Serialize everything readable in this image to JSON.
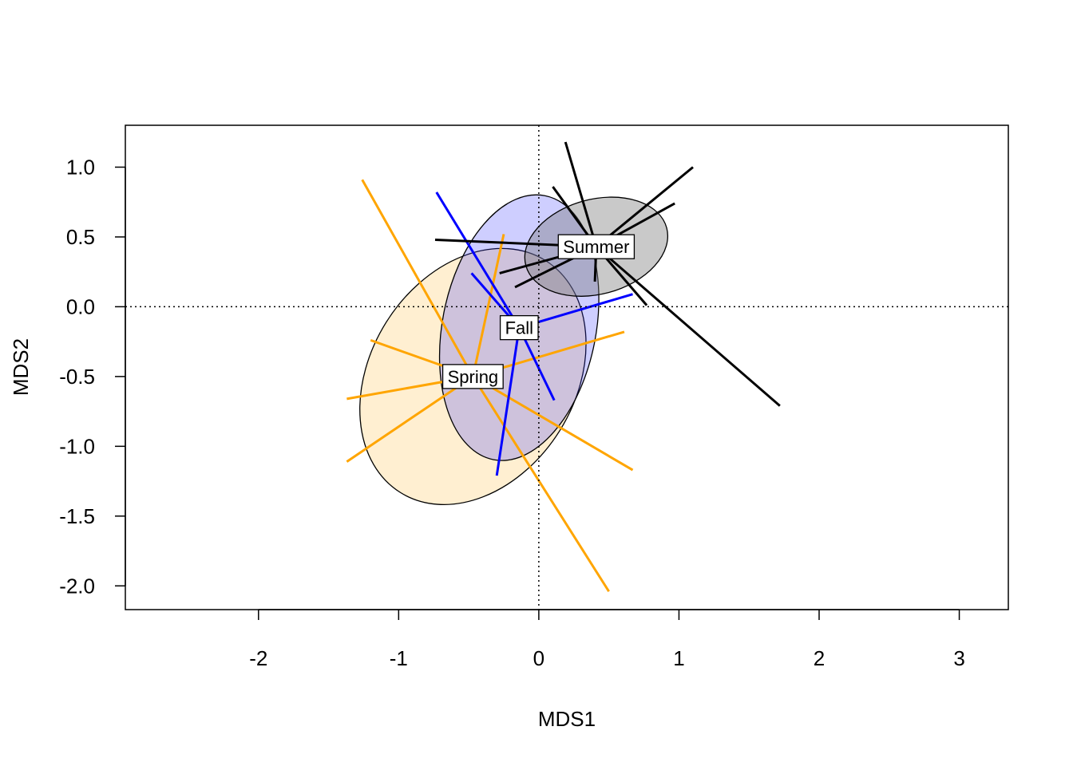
{
  "chart_data": {
    "type": "scatter",
    "subtype": "ordination-spider-ellipse",
    "xlabel": "MDS1",
    "ylabel": "MDS2",
    "xlim": [
      -2.95,
      3.35
    ],
    "ylim": [
      -2.17,
      1.3
    ],
    "x_ticks": [
      -2,
      -1,
      0,
      1,
      2,
      3
    ],
    "y_ticks": [
      1.0,
      0.5,
      0.0,
      -0.5,
      -1.0,
      -1.5,
      -2.0
    ],
    "x_tick_labels": [
      "-2",
      "-1",
      "0",
      "1",
      "2",
      "3"
    ],
    "y_tick_labels": [
      "1.0",
      "0.5",
      "0.0",
      "-0.5",
      "-1.0",
      "-1.5",
      "-2.0"
    ],
    "reference_lines": {
      "x": 0,
      "y": 0,
      "style": "dotted"
    },
    "grid": false,
    "legend": "none",
    "groups": [
      {
        "name": "Spring",
        "color": "#FFA500",
        "ellipse_fill": "rgba(255,165,0,0.18)",
        "centroid": [
          -0.47,
          -0.5
        ],
        "ellipse": {
          "rx": 0.73,
          "ry": 0.98,
          "angle_deg": 32
        },
        "points": [
          [
            -1.26,
            0.91
          ],
          [
            -0.25,
            0.52
          ],
          [
            -1.2,
            -0.24
          ],
          [
            -1.37,
            -0.66
          ],
          [
            -1.37,
            -1.11
          ],
          [
            0.61,
            -0.18
          ],
          [
            0.67,
            -1.17
          ],
          [
            0.5,
            -2.04
          ]
        ]
      },
      {
        "name": "Fall",
        "color": "#0000FF",
        "ellipse_fill": "rgba(60,60,255,0.25)",
        "centroid": [
          -0.14,
          -0.15
        ],
        "ellipse": {
          "rx": 0.96,
          "ry": 0.55,
          "angle_deg": -79
        },
        "points": [
          [
            -0.73,
            0.82
          ],
          [
            -0.48,
            0.24
          ],
          [
            0.67,
            0.09
          ],
          [
            0.11,
            -0.67
          ],
          [
            -0.3,
            -1.21
          ]
        ]
      },
      {
        "name": "Summer",
        "color": "#000000",
        "ellipse_fill": "rgba(120,120,120,0.4)",
        "centroid": [
          0.41,
          0.43
        ],
        "ellipse": {
          "rx": 0.52,
          "ry": 0.34,
          "angle_deg": -15
        },
        "points": [
          [
            0.19,
            1.18
          ],
          [
            0.1,
            0.86
          ],
          [
            1.1,
            1.0
          ],
          [
            0.97,
            0.74
          ],
          [
            -0.74,
            0.48
          ],
          [
            -0.28,
            0.24
          ],
          [
            -0.17,
            0.14
          ],
          [
            0.4,
            0.18
          ],
          [
            0.77,
            0.01
          ],
          [
            1.72,
            -0.71
          ]
        ]
      }
    ]
  }
}
